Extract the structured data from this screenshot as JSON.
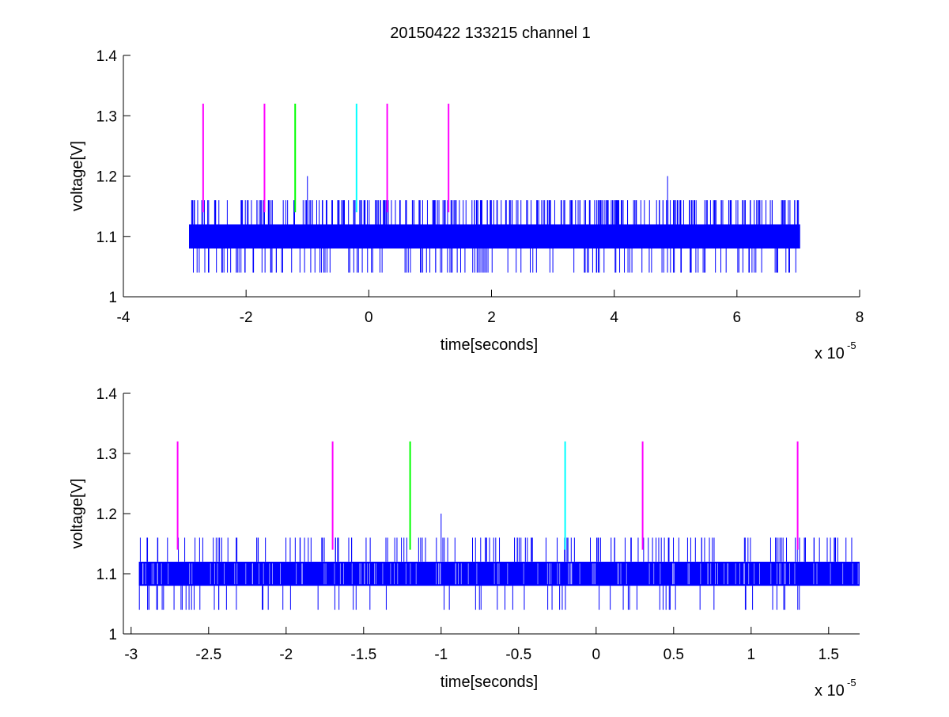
{
  "title": "20150422 133215 channel 1",
  "colors": {
    "signal": "#0000ff",
    "marker_magenta": "#ff00ff",
    "marker_green": "#00ff00",
    "marker_cyan": "#00ffff",
    "axis": "#000000",
    "background": "#ffffff"
  },
  "chart_data": [
    {
      "type": "line",
      "title": "20150422 133215 channel 1",
      "xlabel": "time[seconds]",
      "ylabel": "voltage[V]",
      "x_multiplier": "x 10",
      "x_exponent": "-5",
      "xlim": [
        -4,
        8
      ],
      "ylim": [
        1,
        1.4
      ],
      "xticks": [
        "-4",
        "-2",
        "0",
        "2",
        "4",
        "6",
        "8"
      ],
      "yticks": [
        "1",
        "1.1",
        "1.2",
        "1.3",
        "1.4"
      ],
      "grid": false,
      "series": [
        {
          "style": "dense noisy trace",
          "color": "#0000ff",
          "x_range": [
            -2.93,
            7.03
          ],
          "band": [
            1.08,
            1.12
          ],
          "levels": [
            1.04,
            1.08,
            1.1,
            1.12,
            1.16
          ],
          "spikes": [
            {
              "x": -1.0,
              "y": 1.2
            },
            {
              "x": 4.87,
              "y": 1.2
            }
          ]
        }
      ],
      "markers": [
        {
          "x": -2.7,
          "y_range": [
            1.14,
            1.32
          ],
          "color": "magenta"
        },
        {
          "x": -1.7,
          "y_range": [
            1.14,
            1.32
          ],
          "color": "magenta"
        },
        {
          "x": -1.2,
          "y_range": [
            1.14,
            1.32
          ],
          "color": "green"
        },
        {
          "x": -0.2,
          "y_range": [
            1.14,
            1.32
          ],
          "color": "cyan"
        },
        {
          "x": 0.3,
          "y_range": [
            1.14,
            1.32
          ],
          "color": "magenta"
        },
        {
          "x": 1.3,
          "y_range": [
            1.14,
            1.32
          ],
          "color": "magenta"
        }
      ]
    },
    {
      "type": "line",
      "xlabel": "time[seconds]",
      "ylabel": "voltage[V]",
      "x_multiplier": "x 10",
      "x_exponent": "-5",
      "xlim": [
        -3.05,
        1.7
      ],
      "ylim": [
        1,
        1.4
      ],
      "xticks": [
        "-3",
        "-2.5",
        "-2",
        "-1.5",
        "-1",
        "-0.5",
        "0",
        "0.5",
        "1",
        "1.5"
      ],
      "yticks": [
        "1",
        "1.1",
        "1.2",
        "1.3",
        "1.4"
      ],
      "grid": false,
      "series": [
        {
          "style": "dense noisy trace",
          "color": "#0000ff",
          "x_range": [
            -2.95,
            1.7
          ],
          "band": [
            1.08,
            1.12
          ],
          "levels": [
            1.04,
            1.08,
            1.1,
            1.12,
            1.16
          ],
          "spikes": [
            {
              "x": -1.0,
              "y": 1.2
            }
          ]
        }
      ],
      "markers": [
        {
          "x": -2.7,
          "y_range": [
            1.14,
            1.32
          ],
          "color": "magenta"
        },
        {
          "x": -1.7,
          "y_range": [
            1.14,
            1.32
          ],
          "color": "magenta"
        },
        {
          "x": -1.2,
          "y_range": [
            1.14,
            1.32
          ],
          "color": "green"
        },
        {
          "x": -0.2,
          "y_range": [
            1.14,
            1.32
          ],
          "color": "cyan"
        },
        {
          "x": 0.3,
          "y_range": [
            1.14,
            1.32
          ],
          "color": "magenta"
        },
        {
          "x": 1.3,
          "y_range": [
            1.14,
            1.32
          ],
          "color": "magenta"
        }
      ]
    }
  ]
}
